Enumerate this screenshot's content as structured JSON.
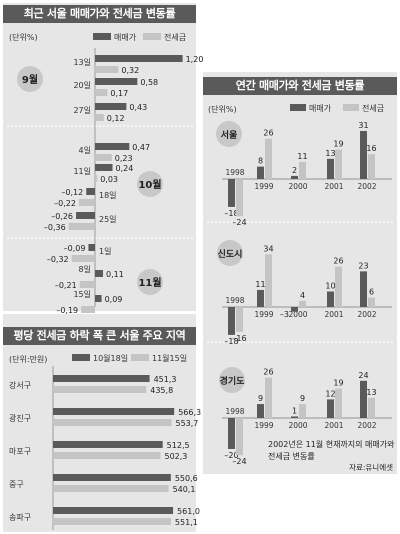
{
  "chart_data": [
    {
      "type": "bar",
      "orientation": "horizontal",
      "title": "최근 서울 매매가와 전세금 변동률",
      "unit": "(단위%)",
      "series_names": [
        "매매가",
        "전세금"
      ],
      "groups": [
        {
          "label": "9월",
          "rows": [
            {
              "x": "13일",
              "values": [
                1.2,
                0.32
              ],
              "labels": [
                "1,20",
                "0,32"
              ]
            },
            {
              "x": "20일",
              "values": [
                0.58,
                0.17
              ],
              "labels": [
                "0,58",
                "0,17"
              ]
            },
            {
              "x": "27일",
              "values": [
                0.43,
                0.12
              ],
              "labels": [
                "0,43",
                "0,12"
              ]
            }
          ]
        },
        {
          "label": "10월",
          "rows": [
            {
              "x": "4일",
              "values": [
                0.47,
                0.23
              ],
              "labels": [
                "0,47",
                "0,23"
              ]
            },
            {
              "x": "11일",
              "values": [
                0.24,
                0.03
              ],
              "labels": [
                "0,24",
                "0,03"
              ]
            },
            {
              "x": "18일",
              "values": [
                -0.12,
                -0.22
              ],
              "labels": [
                "–0,12",
                "–0,22"
              ]
            },
            {
              "x": "25일",
              "values": [
                -0.26,
                -0.36
              ],
              "labels": [
                "–0,26",
                "–0,36"
              ]
            }
          ]
        },
        {
          "label": "11월",
          "rows": [
            {
              "x": "1일",
              "values": [
                -0.09,
                -0.32
              ],
              "labels": [
                "–0,09",
                "–0,32"
              ]
            },
            {
              "x": "8일",
              "values": [
                0.11,
                -0.21
              ],
              "labels": [
                "0,11",
                "–0,21"
              ]
            },
            {
              "x": "15일",
              "values": [
                0.09,
                -0.19
              ],
              "labels": [
                "0,09",
                "–0,19"
              ]
            }
          ]
        }
      ]
    },
    {
      "type": "bar",
      "orientation": "horizontal",
      "title": "평당 전세금 하락 폭 큰 서울 주요 지역",
      "unit": "(단위:만원)",
      "series_names": [
        "10월18일",
        "11월15일"
      ],
      "categories": [
        "강서구",
        "광진구",
        "마포구",
        "중구",
        "송파구"
      ],
      "values": [
        [
          451.3,
          435.8
        ],
        [
          566.3,
          553.7
        ],
        [
          512.5,
          502.3
        ],
        [
          550.6,
          540.1
        ],
        [
          561.0,
          551.1
        ]
      ],
      "labels": [
        [
          "451,3",
          "435,8"
        ],
        [
          "566,3",
          "553,7"
        ],
        [
          "512,5",
          "502,3"
        ],
        [
          "550,6",
          "540,1"
        ],
        [
          "561,0",
          "551,1"
        ]
      ]
    },
    {
      "type": "bar",
      "title": "연간 매매가와 전세금 변동률",
      "unit": "(단위%)",
      "series_names": [
        "매매가",
        "전세금"
      ],
      "x": [
        "1998",
        "1999",
        "2000",
        "2001",
        "2002"
      ],
      "regions": [
        {
          "name": "서울",
          "values": [
            [
              -18,
              -24
            ],
            [
              8,
              26
            ],
            [
              2,
              11
            ],
            [
              13,
              19
            ],
            [
              31,
              16
            ]
          ]
        },
        {
          "name": "신도시",
          "values": [
            [
              -18,
              -16
            ],
            [
              11,
              34
            ],
            [
              -3,
              4
            ],
            [
              10,
              26
            ],
            [
              23,
              6
            ]
          ]
        },
        {
          "name": "경기도",
          "values": [
            [
              -20,
              -24
            ],
            [
              9,
              26
            ],
            [
              1,
              9
            ],
            [
              12,
              19
            ],
            [
              24,
              13
            ]
          ]
        }
      ],
      "note": "2002년은 11월 현재까지의 매매가와 전세금 변동률",
      "source": "자료:유니에셋"
    }
  ],
  "colors": {
    "sale": "#5a5a5a",
    "rent": "#c4c4c4",
    "panel": "#e6e6e6",
    "title_bar": "#5a5a5a",
    "month_circle": "#c8c8c8"
  }
}
